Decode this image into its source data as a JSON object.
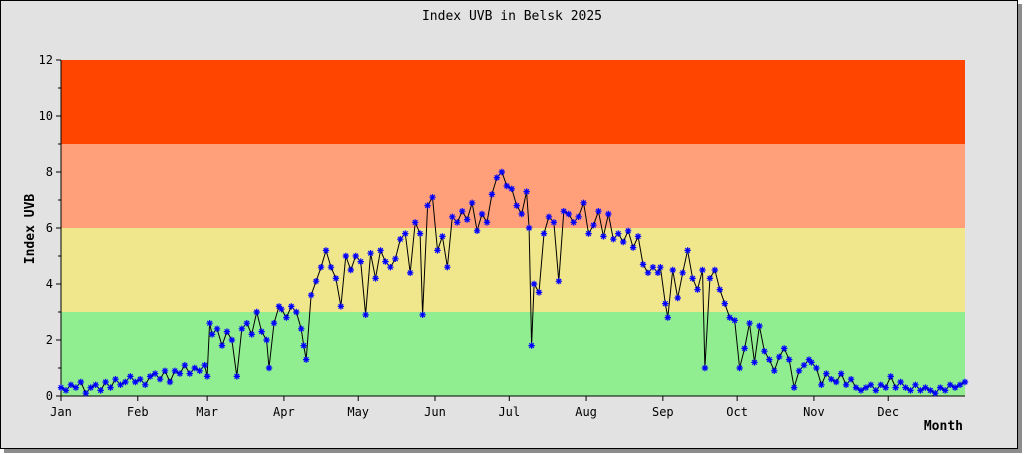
{
  "chart_data": {
    "type": "line",
    "title": "Index UVB in Belsk 2025",
    "xlabel": "Month",
    "ylabel": "Index UVB",
    "ylim": [
      0,
      12
    ],
    "y_ticks": [
      0,
      2,
      4,
      6,
      8,
      10,
      12
    ],
    "x_ticks": [
      "Jan",
      "Feb",
      "Mar",
      "Apr",
      "May",
      "Jun",
      "Jul",
      "Aug",
      "Sep",
      "Oct",
      "Nov",
      "Dec"
    ],
    "x_tick_days": [
      1,
      32,
      60,
      91,
      121,
      152,
      182,
      213,
      244,
      274,
      305,
      335
    ],
    "xlim_days": [
      1,
      366
    ],
    "bands": [
      {
        "from": 0,
        "to": 3,
        "color": "#90ee90"
      },
      {
        "from": 3,
        "to": 6,
        "color": "#f0e68c"
      },
      {
        "from": 6,
        "to": 9,
        "color": "#ffa07a"
      },
      {
        "from": 9,
        "to": 12,
        "color": "#ff4500"
      }
    ],
    "series_color": "#0000ff",
    "line_color": "#000000",
    "series": [
      {
        "anchors_day_value": [
          [
            1,
            0.3
          ],
          [
            3,
            0.2
          ],
          [
            5,
            0.4
          ],
          [
            7,
            0.3
          ],
          [
            9,
            0.5
          ],
          [
            11,
            0.1
          ],
          [
            13,
            0.3
          ],
          [
            15,
            0.4
          ],
          [
            17,
            0.2
          ],
          [
            19,
            0.5
          ],
          [
            21,
            0.3
          ],
          [
            23,
            0.6
          ],
          [
            25,
            0.4
          ],
          [
            27,
            0.5
          ],
          [
            29,
            0.7
          ],
          [
            31,
            0.5
          ],
          [
            33,
            0.6
          ],
          [
            35,
            0.4
          ],
          [
            37,
            0.7
          ],
          [
            39,
            0.8
          ],
          [
            41,
            0.6
          ],
          [
            43,
            0.9
          ],
          [
            45,
            0.5
          ],
          [
            47,
            0.9
          ],
          [
            49,
            0.8
          ],
          [
            51,
            1.1
          ],
          [
            53,
            0.8
          ],
          [
            55,
            1.0
          ],
          [
            57,
            0.9
          ],
          [
            59,
            1.1
          ],
          [
            60,
            0.7
          ],
          [
            61,
            2.6
          ],
          [
            62,
            2.2
          ],
          [
            64,
            2.4
          ],
          [
            66,
            1.8
          ],
          [
            68,
            2.3
          ],
          [
            70,
            2.0
          ],
          [
            72,
            0.7
          ],
          [
            74,
            2.4
          ],
          [
            76,
            2.6
          ],
          [
            78,
            2.2
          ],
          [
            80,
            3.0
          ],
          [
            82,
            2.3
          ],
          [
            84,
            2.0
          ],
          [
            85,
            1.0
          ],
          [
            87,
            2.6
          ],
          [
            89,
            3.2
          ],
          [
            90,
            3.1
          ],
          [
            92,
            2.8
          ],
          [
            94,
            3.2
          ],
          [
            96,
            3.0
          ],
          [
            98,
            2.4
          ],
          [
            99,
            1.8
          ],
          [
            100,
            1.3
          ],
          [
            102,
            3.6
          ],
          [
            104,
            4.1
          ],
          [
            106,
            4.6
          ],
          [
            108,
            5.2
          ],
          [
            110,
            4.6
          ],
          [
            112,
            4.2
          ],
          [
            114,
            3.2
          ],
          [
            116,
            5.0
          ],
          [
            118,
            4.5
          ],
          [
            120,
            5.0
          ],
          [
            122,
            4.8
          ],
          [
            124,
            2.9
          ],
          [
            126,
            5.1
          ],
          [
            128,
            4.2
          ],
          [
            130,
            5.2
          ],
          [
            132,
            4.8
          ],
          [
            134,
            4.6
          ],
          [
            136,
            4.9
          ],
          [
            138,
            5.6
          ],
          [
            140,
            5.8
          ],
          [
            142,
            4.4
          ],
          [
            144,
            6.2
          ],
          [
            146,
            5.8
          ],
          [
            147,
            2.9
          ],
          [
            149,
            6.8
          ],
          [
            151,
            7.1
          ],
          [
            153,
            5.2
          ],
          [
            155,
            5.7
          ],
          [
            157,
            4.6
          ],
          [
            159,
            6.4
          ],
          [
            161,
            6.2
          ],
          [
            163,
            6.6
          ],
          [
            165,
            6.3
          ],
          [
            167,
            6.9
          ],
          [
            169,
            5.9
          ],
          [
            171,
            6.5
          ],
          [
            173,
            6.2
          ],
          [
            175,
            7.2
          ],
          [
            177,
            7.8
          ],
          [
            179,
            8.0
          ],
          [
            181,
            7.5
          ],
          [
            183,
            7.4
          ],
          [
            185,
            6.8
          ],
          [
            187,
            6.5
          ],
          [
            189,
            7.3
          ],
          [
            190,
            6.0
          ],
          [
            191,
            1.8
          ],
          [
            192,
            4.0
          ],
          [
            194,
            3.7
          ],
          [
            196,
            5.8
          ],
          [
            198,
            6.4
          ],
          [
            200,
            6.2
          ],
          [
            202,
            4.1
          ],
          [
            204,
            6.6
          ],
          [
            206,
            6.5
          ],
          [
            208,
            6.2
          ],
          [
            210,
            6.4
          ],
          [
            212,
            6.9
          ],
          [
            214,
            5.8
          ],
          [
            216,
            6.1
          ],
          [
            218,
            6.6
          ],
          [
            220,
            5.7
          ],
          [
            222,
            6.5
          ],
          [
            224,
            5.6
          ],
          [
            226,
            5.8
          ],
          [
            228,
            5.5
          ],
          [
            230,
            5.9
          ],
          [
            232,
            5.3
          ],
          [
            234,
            5.7
          ],
          [
            236,
            4.7
          ],
          [
            238,
            4.4
          ],
          [
            240,
            4.6
          ],
          [
            242,
            4.4
          ],
          [
            243,
            4.6
          ],
          [
            245,
            3.3
          ],
          [
            246,
            2.8
          ],
          [
            248,
            4.5
          ],
          [
            250,
            3.5
          ],
          [
            252,
            4.4
          ],
          [
            254,
            5.2
          ],
          [
            256,
            4.2
          ],
          [
            258,
            3.8
          ],
          [
            260,
            4.5
          ],
          [
            261,
            1.0
          ],
          [
            263,
            4.2
          ],
          [
            265,
            4.5
          ],
          [
            267,
            3.8
          ],
          [
            269,
            3.3
          ],
          [
            271,
            2.8
          ],
          [
            273,
            2.7
          ],
          [
            275,
            1.0
          ],
          [
            277,
            1.7
          ],
          [
            279,
            2.6
          ],
          [
            281,
            1.2
          ],
          [
            283,
            2.5
          ],
          [
            285,
            1.6
          ],
          [
            287,
            1.3
          ],
          [
            289,
            0.9
          ],
          [
            291,
            1.4
          ],
          [
            293,
            1.7
          ],
          [
            295,
            1.3
          ],
          [
            297,
            0.3
          ],
          [
            299,
            0.9
          ],
          [
            301,
            1.1
          ],
          [
            303,
            1.3
          ],
          [
            304,
            1.2
          ],
          [
            306,
            1.0
          ],
          [
            308,
            0.4
          ],
          [
            310,
            0.8
          ],
          [
            312,
            0.6
          ],
          [
            314,
            0.5
          ],
          [
            316,
            0.8
          ],
          [
            318,
            0.4
          ],
          [
            320,
            0.6
          ],
          [
            322,
            0.3
          ],
          [
            324,
            0.2
          ],
          [
            326,
            0.3
          ],
          [
            328,
            0.4
          ],
          [
            330,
            0.2
          ],
          [
            332,
            0.4
          ],
          [
            334,
            0.3
          ],
          [
            336,
            0.7
          ],
          [
            338,
            0.3
          ],
          [
            340,
            0.5
          ],
          [
            342,
            0.3
          ],
          [
            344,
            0.2
          ],
          [
            346,
            0.4
          ],
          [
            348,
            0.2
          ],
          [
            350,
            0.3
          ],
          [
            352,
            0.2
          ],
          [
            354,
            0.1
          ],
          [
            356,
            0.3
          ],
          [
            358,
            0.2
          ],
          [
            360,
            0.4
          ],
          [
            362,
            0.3
          ],
          [
            364,
            0.4
          ],
          [
            366,
            0.5
          ]
        ]
      }
    ]
  }
}
